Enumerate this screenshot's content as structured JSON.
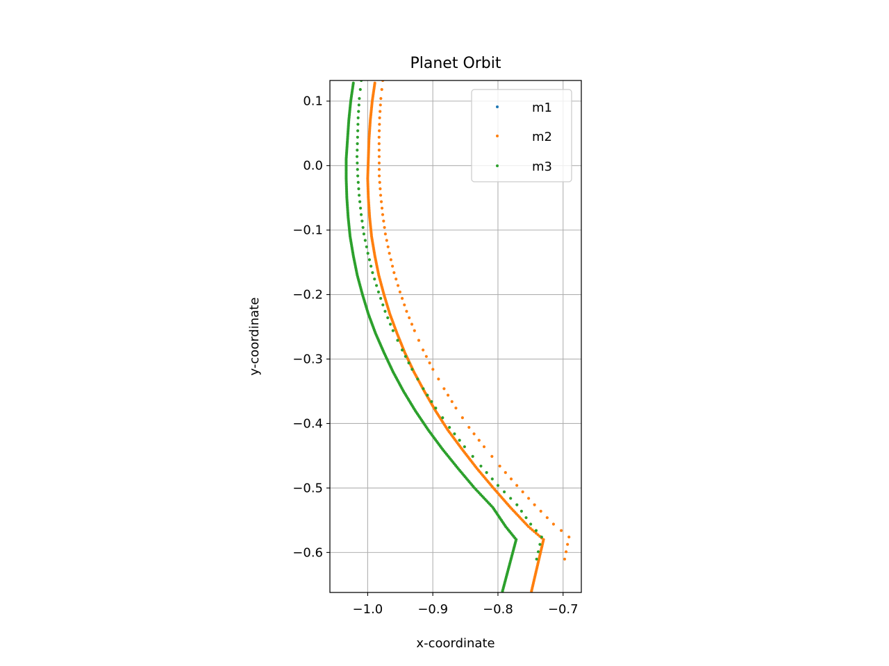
{
  "chart_data": {
    "type": "scatter",
    "title": "Planet Orbit",
    "xlabel": "x-coordinate",
    "ylabel": "y-coordinate",
    "xlim": [
      -1.058,
      -0.672
    ],
    "ylim": [
      -0.662,
      0.132
    ],
    "xticks": [
      -1.0,
      -0.9,
      -0.8,
      -0.7
    ],
    "xtick_labels": [
      "−1.0",
      "−0.9",
      "−0.8",
      "−0.7"
    ],
    "yticks": [
      0.1,
      0.0,
      -0.1,
      -0.2,
      -0.3,
      -0.4,
      -0.5,
      -0.6
    ],
    "ytick_labels": [
      "0.1",
      "0.0",
      "−0.1",
      "−0.2",
      "−0.3",
      "−0.4",
      "−0.5",
      "−0.6"
    ],
    "grid": true,
    "legend_position": "upper right",
    "series": [
      {
        "name": "m1",
        "color": "#1f77b4",
        "points": []
      },
      {
        "name": "m2",
        "color": "#ff7f0e",
        "points": [
          [
            -0.989,
            0.128
          ],
          [
            -0.993,
            0.1
          ],
          [
            -0.996,
            0.07
          ],
          [
            -0.998,
            0.04
          ],
          [
            -0.999,
            0.01
          ],
          [
            -1.0,
            -0.02
          ],
          [
            -0.999,
            -0.05
          ],
          [
            -0.997,
            -0.08
          ],
          [
            -0.994,
            -0.11
          ],
          [
            -0.989,
            -0.14
          ],
          [
            -0.983,
            -0.17
          ],
          [
            -0.975,
            -0.2
          ],
          [
            -0.966,
            -0.23
          ],
          [
            -0.955,
            -0.26
          ],
          [
            -0.943,
            -0.29
          ],
          [
            -0.929,
            -0.32
          ],
          [
            -0.913,
            -0.35
          ],
          [
            -0.896,
            -0.38
          ],
          [
            -0.877,
            -0.41
          ],
          [
            -0.855,
            -0.44
          ],
          [
            -0.832,
            -0.47
          ],
          [
            -0.807,
            -0.5
          ],
          [
            -0.781,
            -0.53
          ],
          [
            -0.753,
            -0.56
          ],
          [
            -0.73,
            -0.58
          ],
          [
            -0.7485,
            -0.66
          ]
        ]
      },
      {
        "name": "m3",
        "color": "#2ca02c",
        "points": [
          [
            -1.022,
            0.128
          ],
          [
            -1.026,
            0.1
          ],
          [
            -1.029,
            0.07
          ],
          [
            -1.031,
            0.04
          ],
          [
            -1.033,
            0.01
          ],
          [
            -1.033,
            -0.02
          ],
          [
            -1.032,
            -0.05
          ],
          [
            -1.03,
            -0.08
          ],
          [
            -1.027,
            -0.11
          ],
          [
            -1.022,
            -0.14
          ],
          [
            -1.016,
            -0.17
          ],
          [
            -1.008,
            -0.2
          ],
          [
            -0.999,
            -0.23
          ],
          [
            -0.988,
            -0.26
          ],
          [
            -0.975,
            -0.29
          ],
          [
            -0.961,
            -0.32
          ],
          [
            -0.945,
            -0.35
          ],
          [
            -0.927,
            -0.38
          ],
          [
            -0.907,
            -0.41
          ],
          [
            -0.885,
            -0.44
          ],
          [
            -0.861,
            -0.47
          ],
          [
            -0.836,
            -0.5
          ],
          [
            -0.808,
            -0.53
          ],
          [
            -0.788,
            -0.56
          ],
          [
            -0.772,
            -0.58
          ],
          [
            -0.793,
            -0.66
          ]
        ]
      }
    ]
  }
}
